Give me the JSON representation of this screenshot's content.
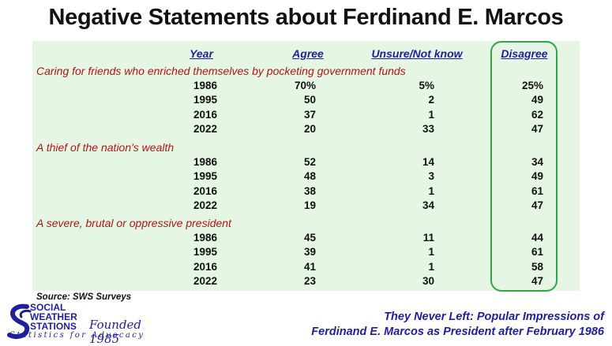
{
  "title": "Negative Statements about Ferdinand E. Marcos",
  "headers": {
    "year": "Year",
    "agree": "Agree",
    "unsure": "Unsure/Not know",
    "disagree": "Disagree"
  },
  "sections": [
    {
      "label": "Caring for friends who enriched themselves by pocketing government funds",
      "rows": [
        [
          "1986",
          "70%",
          "5%",
          "25%"
        ],
        [
          "1995",
          "50",
          "2",
          "49"
        ],
        [
          "2016",
          "37",
          "1",
          "62"
        ],
        [
          "2022",
          "20",
          "33",
          "47"
        ]
      ]
    },
    {
      "label": "A thief of the nation's wealth",
      "rows": [
        [
          "1986",
          "52",
          "14",
          "34"
        ],
        [
          "1995",
          "48",
          "3",
          "49"
        ],
        [
          "2016",
          "38",
          "1",
          "61"
        ],
        [
          "2022",
          "19",
          "34",
          "47"
        ]
      ]
    },
    {
      "label": "A severe, brutal or oppressive president",
      "rows": [
        [
          "1986",
          "45",
          "11",
          "44"
        ],
        [
          "1995",
          "39",
          "1",
          "61"
        ],
        [
          "2016",
          "41",
          "1",
          "58"
        ],
        [
          "2022",
          "23",
          "30",
          "47"
        ]
      ]
    }
  ],
  "source": "Source: SWS Surveys",
  "logo": {
    "line1": "SOCIAL",
    "line2": "WEATHER",
    "line3": "STATIONS",
    "founded": "Founded 1985",
    "tagline": "Statistics for Advocacy"
  },
  "caption": {
    "line1": "They Never Left: Popular Impressions of",
    "line2": "Ferdinand E. Marcos as President after February 1986"
  },
  "colors": {
    "panel": "#e5f7e4",
    "header_text": "#1f1f9e",
    "section_text": "#b01414",
    "highlight_border": "#2fa64a"
  }
}
